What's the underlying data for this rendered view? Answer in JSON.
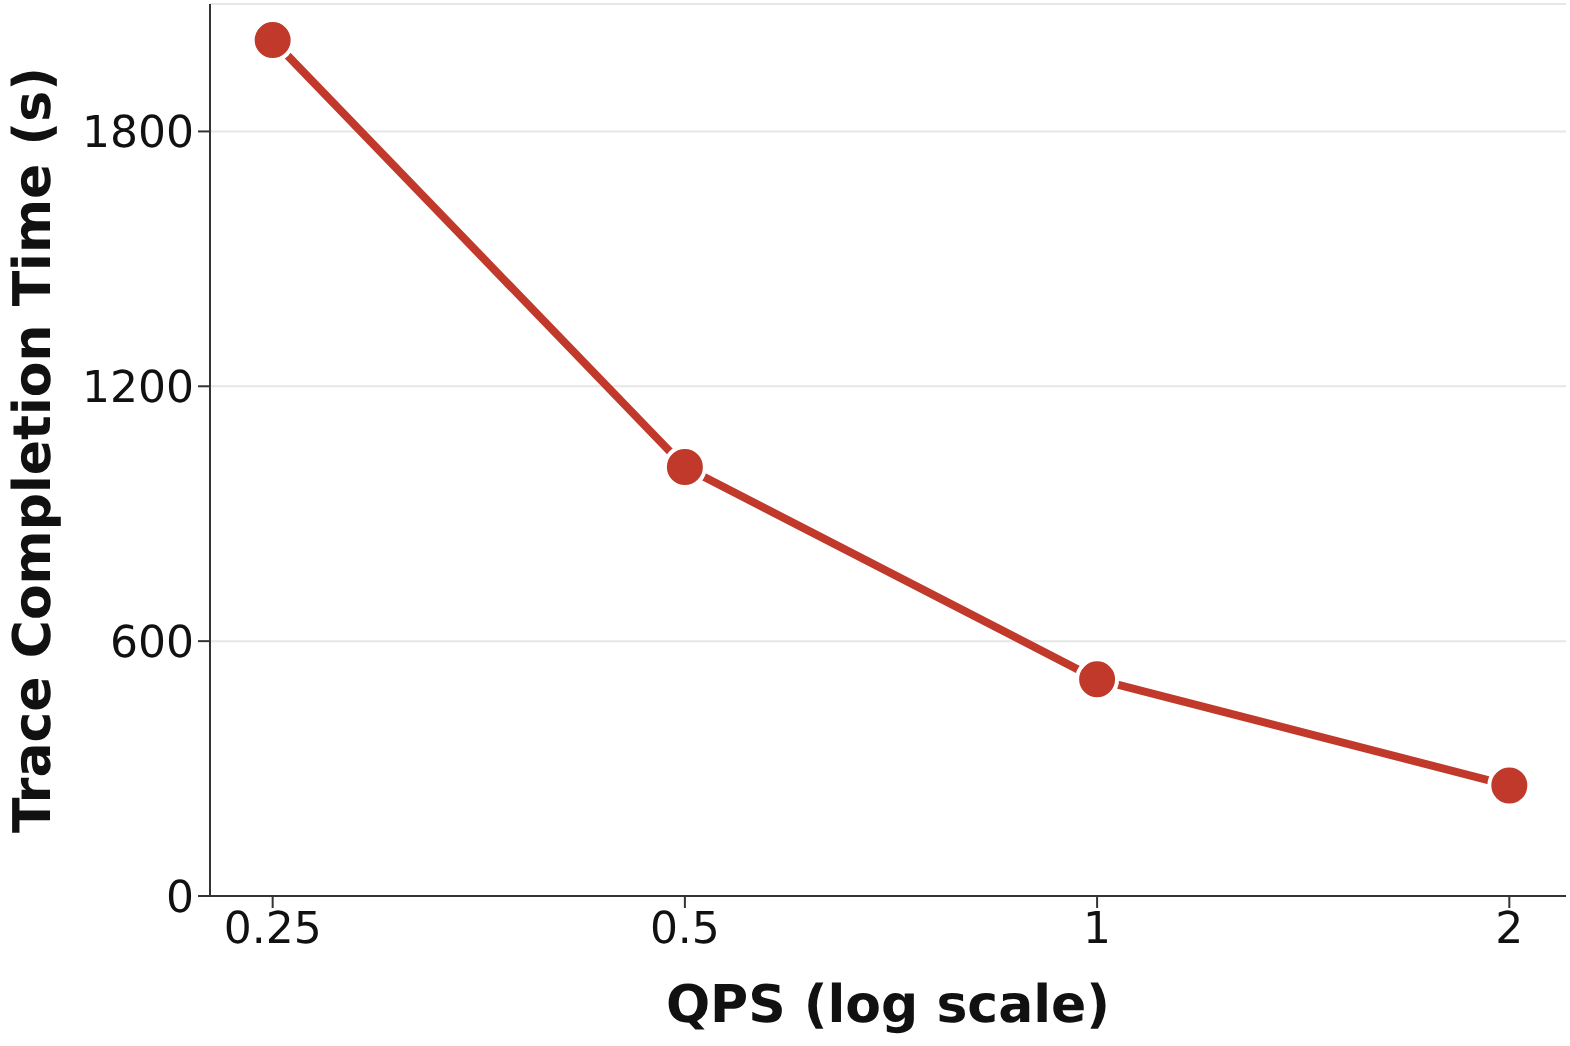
{
  "chart_data": {
    "type": "line",
    "xlabel": "QPS (log scale)",
    "ylabel": "Trace Completion Time (s)",
    "x": [
      0.25,
      0.5,
      1,
      2
    ],
    "series": [
      {
        "color": "#c0392b",
        "values": [
          2015,
          1010,
          510,
          260
        ]
      }
    ],
    "log": "x",
    "xlim": [
      0.225,
      2.2
    ],
    "xticks": [
      0.25,
      0.5,
      1,
      2
    ],
    "ylim": [
      0,
      2100
    ],
    "yticks": [
      0,
      600,
      1200,
      1800
    ],
    "grid": "y",
    "marker": "circle",
    "line_style": "solid"
  }
}
